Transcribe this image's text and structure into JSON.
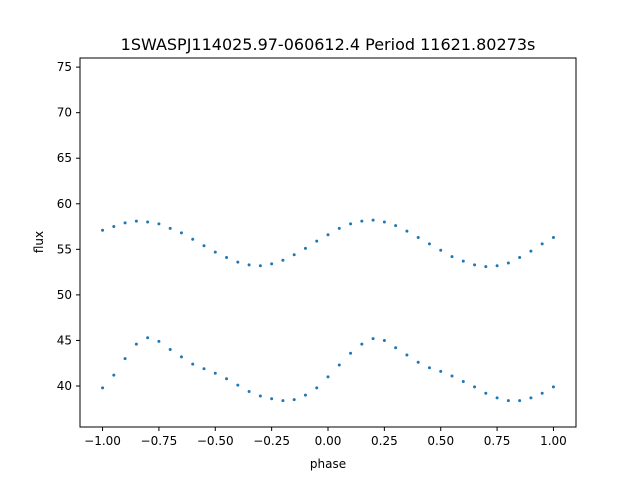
{
  "chart_data": {
    "type": "scatter",
    "title": "1SWASPJ114025.97-060612.4 Period 11621.80273s",
    "xlabel": "phase",
    "ylabel": "flux",
    "xlim": [
      -1.1,
      1.1
    ],
    "ylim": [
      35.5,
      76.0
    ],
    "x_ticks": [
      -1.0,
      -0.75,
      -0.5,
      -0.25,
      0.0,
      0.25,
      0.5,
      0.75,
      1.0
    ],
    "x_tick_labels": [
      "−1.00",
      "−0.75",
      "−0.50",
      "−0.25",
      "0.00",
      "0.25",
      "0.50",
      "0.75",
      "1.00"
    ],
    "y_ticks": [
      40,
      45,
      50,
      55,
      60,
      65,
      70,
      75
    ],
    "y_tick_labels": [
      "40",
      "45",
      "50",
      "55",
      "60",
      "65",
      "70",
      "75"
    ],
    "point_color": "#1f77b4",
    "grid": false,
    "legend": false,
    "series": [
      {
        "x": [
          -1.0,
          -0.95,
          -0.9,
          -0.85,
          -0.8,
          -0.75,
          -0.7,
          -0.65,
          -0.6,
          -0.55,
          -0.5,
          -0.45,
          -0.4,
          -0.35,
          -0.3,
          -0.25,
          -0.2,
          -0.15,
          -0.1,
          -0.05,
          0.0,
          0.05,
          0.1,
          0.15,
          0.2,
          0.25,
          0.3,
          0.35,
          0.4,
          0.45,
          0.5,
          0.55,
          0.6,
          0.65,
          0.7,
          0.75,
          0.8,
          0.85,
          0.9,
          0.95,
          1.0
        ],
        "y": [
          57.1,
          57.5,
          57.9,
          58.1,
          58.0,
          57.8,
          57.3,
          56.8,
          56.1,
          55.4,
          54.7,
          54.1,
          53.6,
          53.3,
          53.2,
          53.4,
          53.8,
          54.4,
          55.1,
          55.9,
          56.6,
          57.3,
          57.8,
          58.1,
          58.2,
          58.0,
          57.6,
          57.0,
          56.3,
          55.6,
          54.9,
          54.2,
          53.7,
          53.3,
          53.1,
          53.2,
          53.5,
          54.1,
          54.8,
          55.6,
          56.3
        ]
      },
      {
        "x": [
          -1.0,
          -0.95,
          -0.9,
          -0.85,
          -0.8,
          -0.75,
          -0.7,
          -0.65,
          -0.6,
          -0.55,
          -0.5,
          -0.45,
          -0.4,
          -0.35,
          -0.3,
          -0.25,
          -0.2,
          -0.15,
          -0.1,
          -0.05,
          0.0,
          0.05,
          0.1,
          0.15,
          0.2,
          0.25,
          0.3,
          0.35,
          0.4,
          0.45,
          0.5,
          0.55,
          0.6,
          0.65,
          0.7,
          0.75,
          0.8,
          0.85,
          0.9,
          0.95,
          1.0
        ],
        "y": [
          39.8,
          41.2,
          43.0,
          44.6,
          45.3,
          44.9,
          44.0,
          43.2,
          42.4,
          41.9,
          41.4,
          40.8,
          40.1,
          39.4,
          38.9,
          38.6,
          38.4,
          38.5,
          39.0,
          39.8,
          41.0,
          42.3,
          43.6,
          44.6,
          45.2,
          45.0,
          44.2,
          43.4,
          42.6,
          42.0,
          41.6,
          41.1,
          40.5,
          39.9,
          39.2,
          38.7,
          38.4,
          38.4,
          38.7,
          39.2,
          39.9
        ]
      }
    ]
  }
}
